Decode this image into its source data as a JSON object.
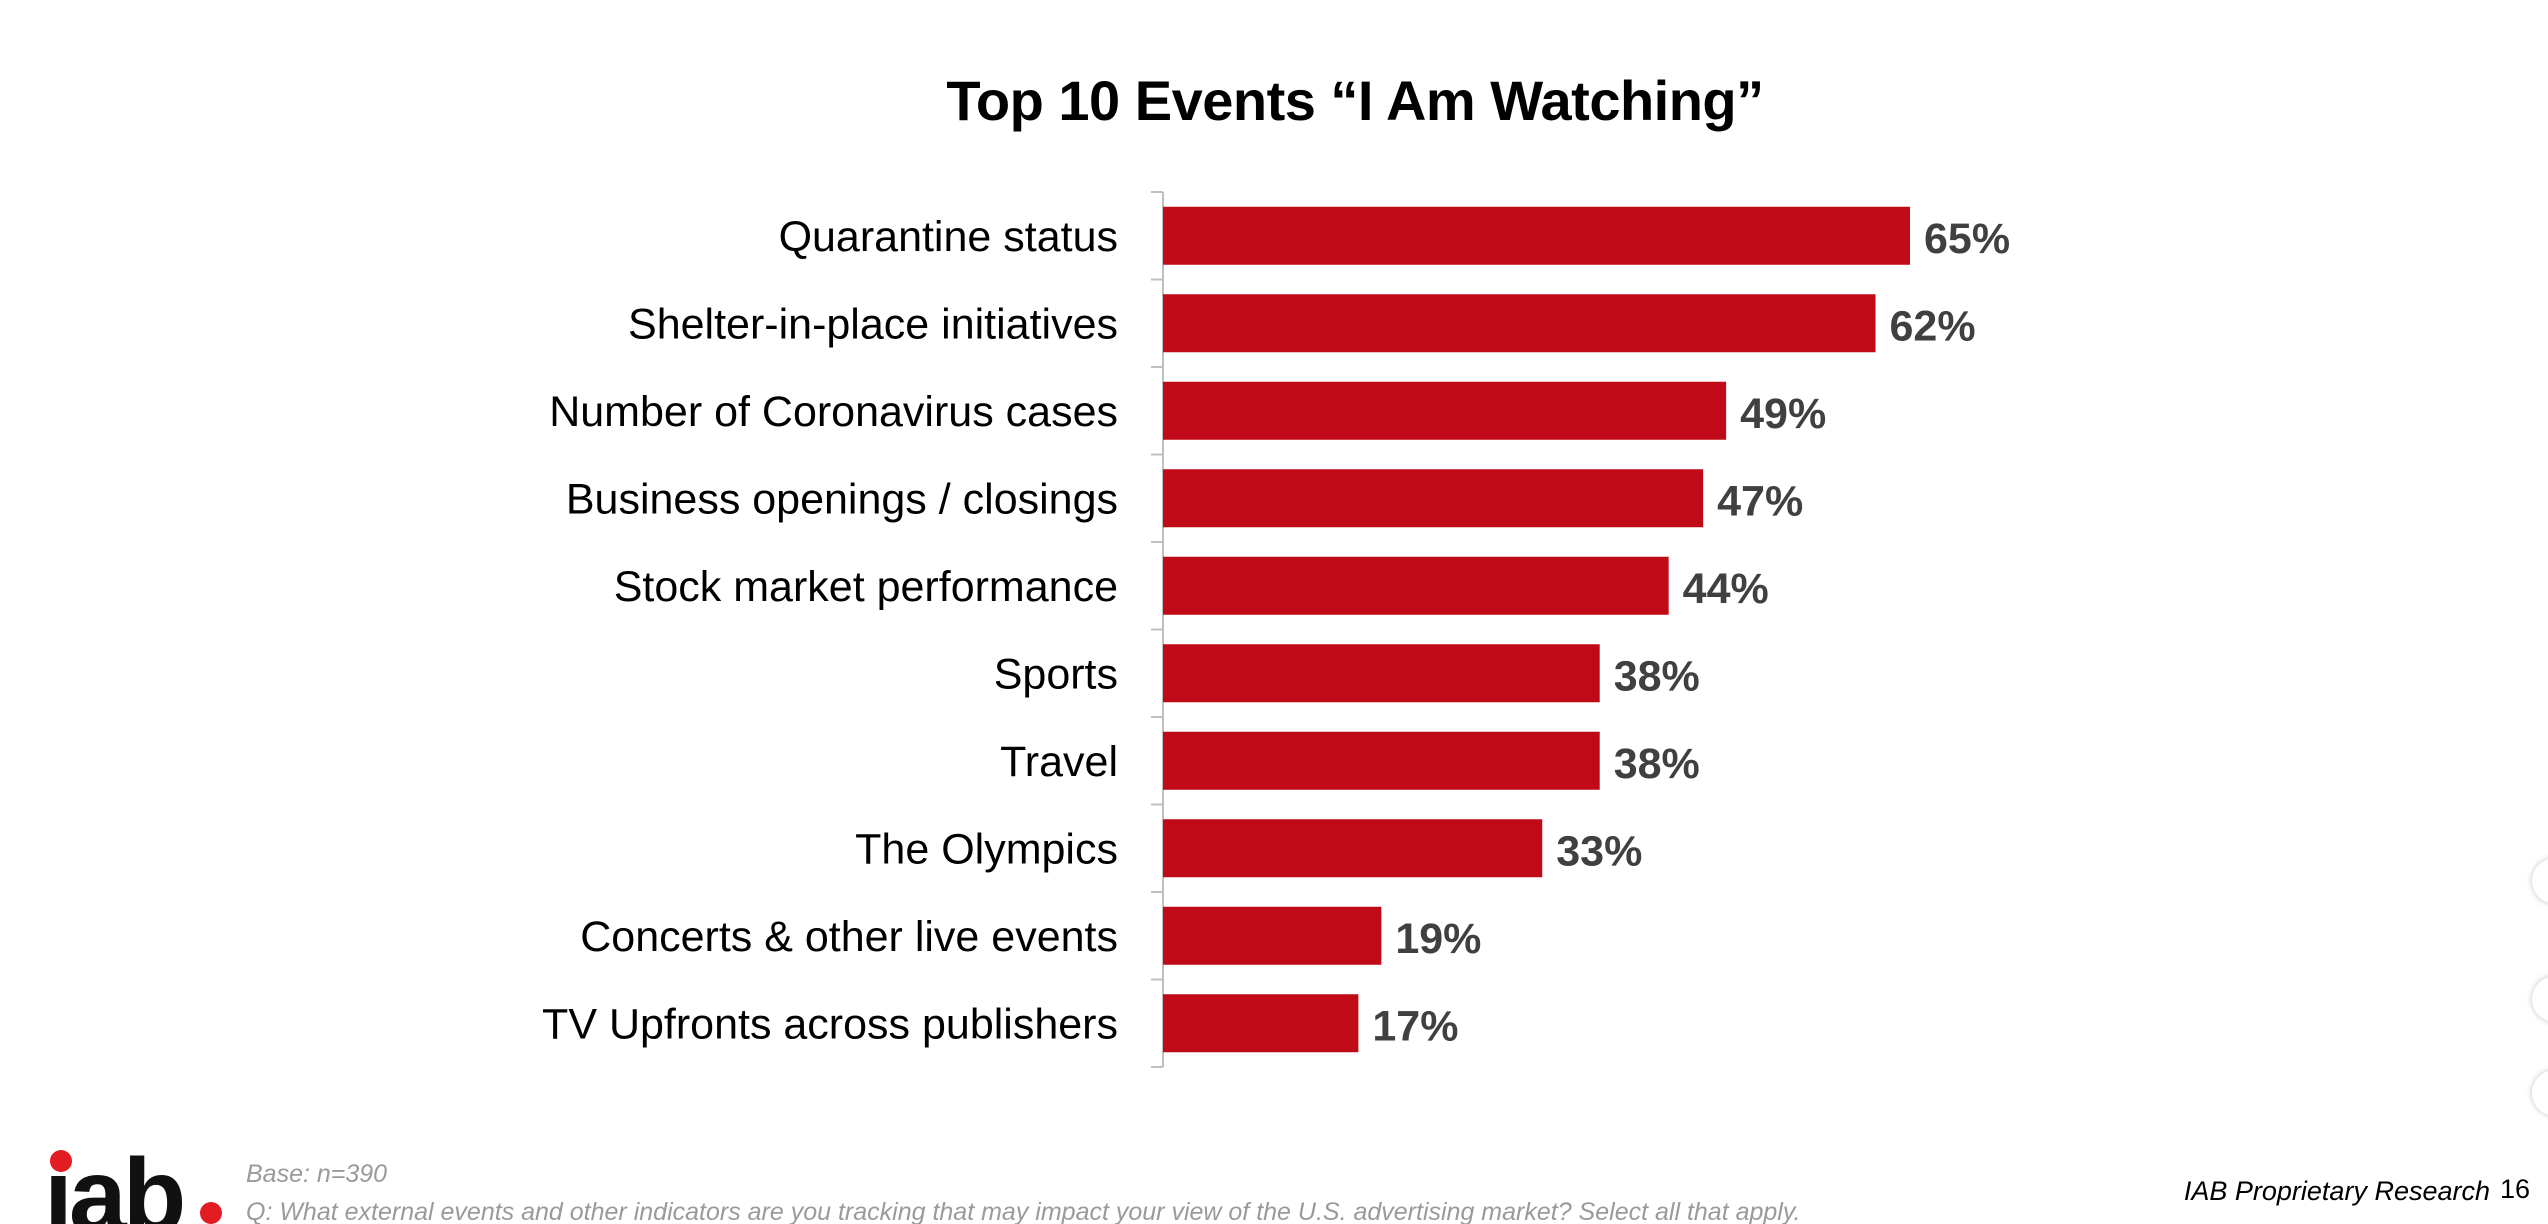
{
  "slide": {
    "title": "Top 10 Events “I Am Watching”",
    "footer": {
      "base": "Base: n=390",
      "question": "Q: What external events and other indicators are you tracking that may impact your view of the U.S. advertising market? Select all that apply.",
      "source": "IAB Proprietary Research",
      "page_number": "16"
    },
    "logo": {
      "text": "iab"
    }
  },
  "chart_data": {
    "type": "bar",
    "orientation": "horizontal",
    "title": "Top 10 Events “I Am Watching”",
    "categories": [
      "Quarantine status",
      "Shelter-in-place initiatives",
      "Number of Coronavirus cases",
      "Business openings / closings",
      "Stock market performance",
      "Sports",
      "Travel",
      "The Olympics",
      "Concerts & other live events",
      "TV Upfronts across publishers"
    ],
    "values": [
      65,
      62,
      49,
      47,
      44,
      38,
      38,
      33,
      19,
      17
    ],
    "value_labels": [
      "65%",
      "62%",
      "49%",
      "47%",
      "44%",
      "38%",
      "38%",
      "33%",
      "19%",
      "17%"
    ],
    "unit": "%",
    "xlim": [
      0,
      100
    ],
    "bar_color": "#c00a17",
    "label_color": "#404040",
    "grid": false,
    "legend": "none"
  }
}
